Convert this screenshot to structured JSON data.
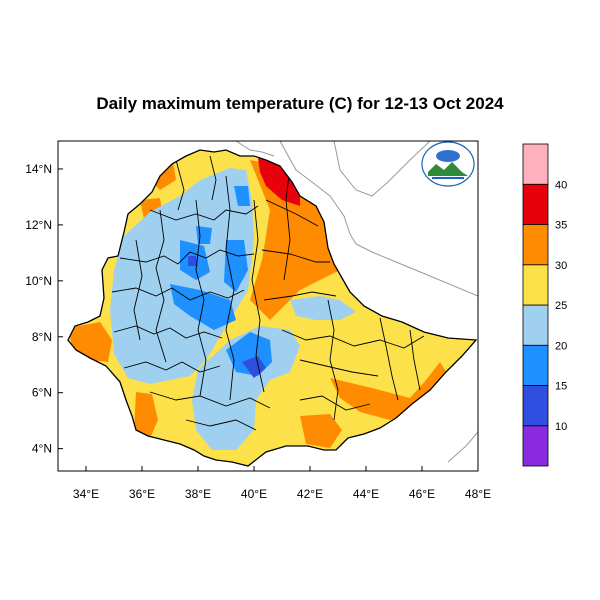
{
  "title": "Daily maximum temperature (C) for 12-13 Oct 2024",
  "chart_data": {
    "type": "heatmap",
    "title": "Daily maximum temperature (C) for 12-13 Oct 2024",
    "region": "Ethiopia",
    "x_ticks": [
      "34°E",
      "36°E",
      "38°E",
      "40°E",
      "42°E",
      "44°E",
      "46°E",
      "48°E"
    ],
    "y_ticks": [
      "14°N",
      "12°N",
      "10°N",
      "8°N",
      "6°N",
      "4°N"
    ],
    "x_tick_values": [
      34,
      36,
      38,
      40,
      42,
      44,
      46,
      48
    ],
    "y_tick_values": [
      14,
      12,
      10,
      8,
      6,
      4
    ],
    "xlim": [
      33,
      48
    ],
    "ylim": [
      3.2,
      15
    ],
    "legend": {
      "labels": [
        "10",
        "15",
        "20",
        "25",
        "30",
        "35",
        "40"
      ],
      "bins": [
        {
          "range": "<10",
          "color": "#8a2be2"
        },
        {
          "range": "10-15",
          "color": "#2f4fe0"
        },
        {
          "range": "15-20",
          "color": "#1e90ff"
        },
        {
          "range": "20-25",
          "color": "#9fd0ef"
        },
        {
          "range": "25-30",
          "color": "#fde14a"
        },
        {
          "range": "30-35",
          "color": "#ff8c00"
        },
        {
          "range": "35-40",
          "color": "#e8000b"
        },
        {
          "range": ">40",
          "color": "#ffb0bd"
        }
      ]
    }
  },
  "colors": {
    "cool_blue": "#1e90ff",
    "light_blue": "#9fd0ef",
    "yellow": "#fde14a",
    "orange": "#ff8c00",
    "red": "#e8000b",
    "border": "#000000",
    "neighbor_border": "#999999"
  },
  "logo": {
    "icon": "meteorology-institute-logo-icon"
  }
}
